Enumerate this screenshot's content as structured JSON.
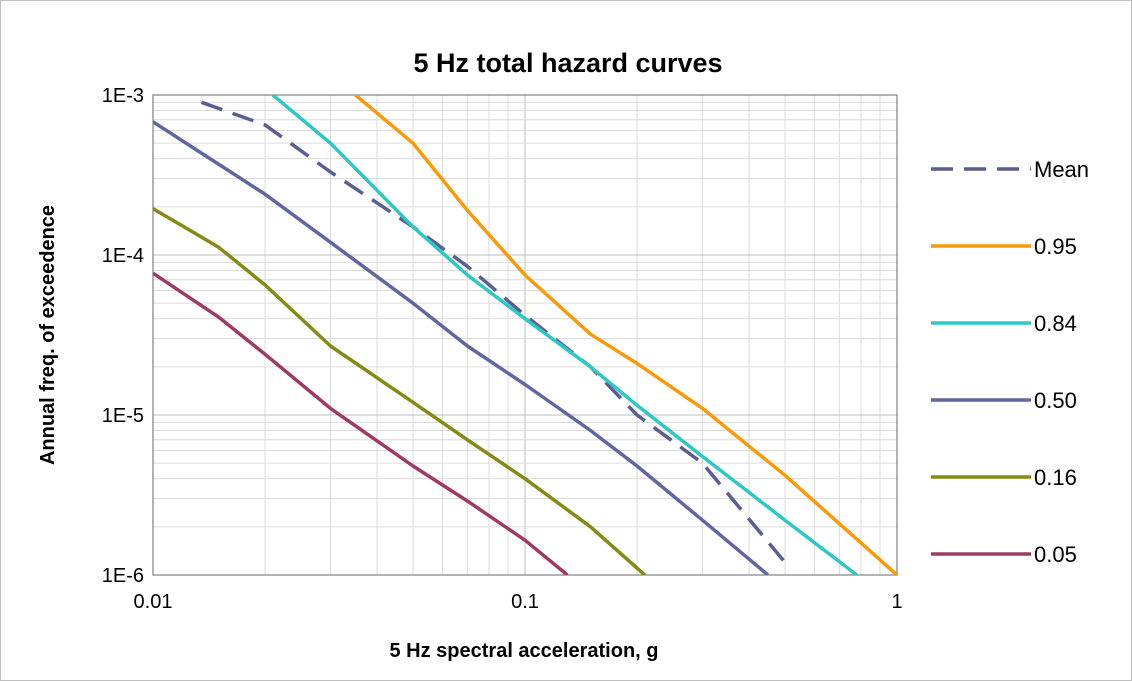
{
  "chart_data": {
    "type": "line",
    "title": "5 Hz total hazard curves",
    "xlabel": "5 Hz spectral acceleration, g",
    "ylabel": "Annual freq. of exceedence",
    "x_scale": "log",
    "y_scale": "log",
    "xlim": [
      0.01,
      1
    ],
    "ylim": [
      1e-06,
      0.001
    ],
    "x_ticks": [
      "0.01",
      "0.1",
      "1"
    ],
    "y_ticks": [
      "1E-6",
      "1E-5",
      "1E-4",
      "1E-3"
    ],
    "grid": true,
    "legend_position": "right",
    "series": [
      {
        "name": "Mean",
        "color": "#5A5E91",
        "dash": true,
        "points": [
          [
            0.0135,
            0.0009
          ],
          [
            0.02,
            0.00065
          ],
          [
            0.03,
            0.00033
          ],
          [
            0.05,
            0.00015
          ],
          [
            0.07,
            8.5e-05
          ],
          [
            0.1,
            4.2e-05
          ],
          [
            0.15,
            2e-05
          ],
          [
            0.2,
            1e-05
          ],
          [
            0.3,
            5e-06
          ],
          [
            0.5,
            1.2e-06
          ]
        ]
      },
      {
        "name": "0.95",
        "color": "#F79A0E",
        "dash": false,
        "points": [
          [
            0.035,
            0.001
          ],
          [
            0.05,
            0.0005
          ],
          [
            0.07,
            0.00019
          ],
          [
            0.1,
            7.5e-05
          ],
          [
            0.15,
            3.2e-05
          ],
          [
            0.2,
            2.1e-05
          ],
          [
            0.3,
            1.1e-05
          ],
          [
            0.5,
            4.2e-06
          ],
          [
            1.0,
            1e-06
          ]
        ]
      },
      {
        "name": "0.84",
        "color": "#2FC6C3",
        "dash": false,
        "points": [
          [
            0.021,
            0.001
          ],
          [
            0.03,
            0.0005
          ],
          [
            0.05,
            0.00015
          ],
          [
            0.07,
            7.5e-05
          ],
          [
            0.1,
            4e-05
          ],
          [
            0.15,
            2e-05
          ],
          [
            0.2,
            1.15e-05
          ],
          [
            0.3,
            5.5e-06
          ],
          [
            0.5,
            2.2e-06
          ],
          [
            0.78,
            1e-06
          ]
        ]
      },
      {
        "name": "0.50",
        "color": "#6266A0",
        "dash": false,
        "points": [
          [
            0.01,
            0.00068
          ],
          [
            0.015,
            0.00037
          ],
          [
            0.02,
            0.00024
          ],
          [
            0.03,
            0.00012
          ],
          [
            0.05,
            5e-05
          ],
          [
            0.07,
            2.7e-05
          ],
          [
            0.1,
            1.55e-05
          ],
          [
            0.15,
            8e-06
          ],
          [
            0.2,
            4.8e-06
          ],
          [
            0.3,
            2.2e-06
          ],
          [
            0.45,
            1e-06
          ]
        ]
      },
      {
        "name": "0.16",
        "color": "#858A17",
        "dash": false,
        "points": [
          [
            0.01,
            0.000195
          ],
          [
            0.015,
            0.000112
          ],
          [
            0.02,
            6.5e-05
          ],
          [
            0.03,
            2.7e-05
          ],
          [
            0.05,
            1.2e-05
          ],
          [
            0.07,
            7e-06
          ],
          [
            0.1,
            4e-06
          ],
          [
            0.15,
            2e-06
          ],
          [
            0.21,
            1e-06
          ]
        ]
      },
      {
        "name": "0.05",
        "color": "#9D3B66",
        "dash": false,
        "points": [
          [
            0.01,
            7.7e-05
          ],
          [
            0.015,
            4.1e-05
          ],
          [
            0.02,
            2.4e-05
          ],
          [
            0.03,
            1.1e-05
          ],
          [
            0.05,
            4.8e-06
          ],
          [
            0.07,
            2.9e-06
          ],
          [
            0.1,
            1.65e-06
          ],
          [
            0.13,
            1e-06
          ]
        ]
      }
    ]
  }
}
